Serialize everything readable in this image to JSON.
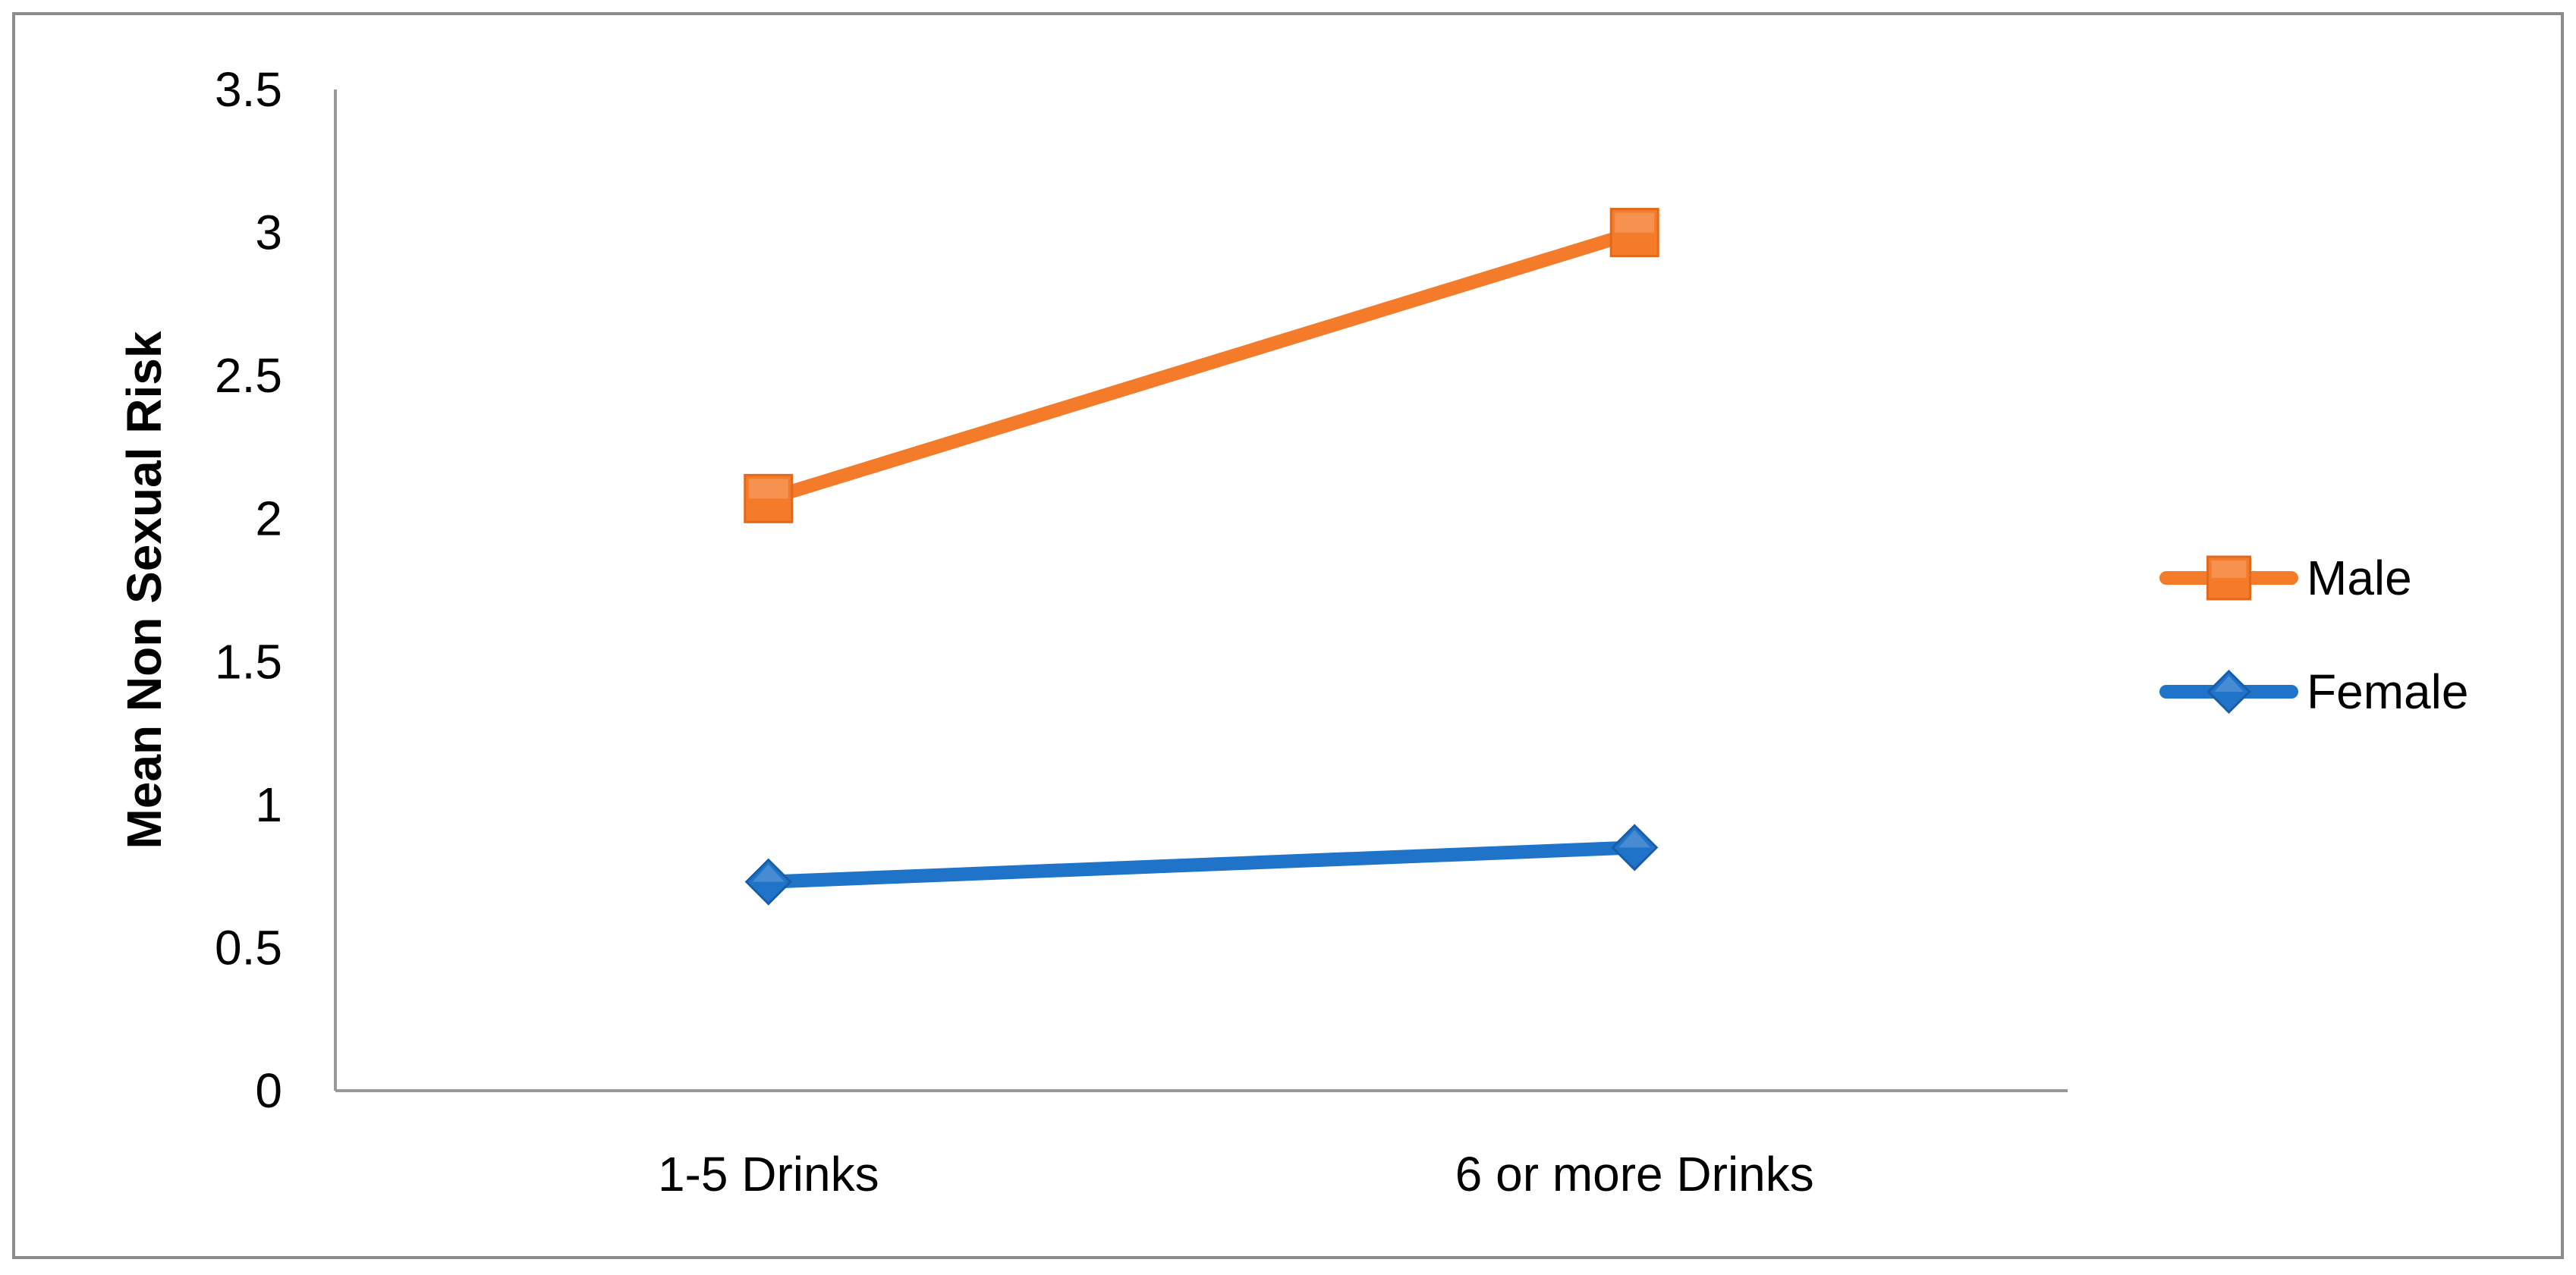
{
  "chart_data": {
    "type": "line",
    "title": "",
    "xlabel": "",
    "ylabel": "Mean Non Sexual Risk",
    "categories": [
      "1-5 Drinks",
      "6 or more Drinks"
    ],
    "ylim": [
      0,
      3.5
    ],
    "yticks": [
      0,
      0.5,
      1,
      1.5,
      2,
      2.5,
      3,
      3.5
    ],
    "ytick_labels": [
      "0",
      "0.5",
      "1",
      "1.5",
      "2",
      "2.5",
      "3",
      "3.5"
    ],
    "grid": false,
    "legend_position": "right",
    "series": [
      {
        "name": "Male",
        "values": [
          2.07,
          3.0
        ],
        "color": "#F47B29",
        "marker": "square"
      },
      {
        "name": "Female",
        "values": [
          0.73,
          0.85
        ],
        "color": "#1F73C9",
        "marker": "diamond"
      }
    ]
  }
}
